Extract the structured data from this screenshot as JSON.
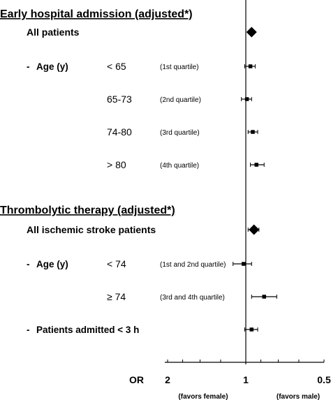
{
  "chart_data": {
    "type": "forest",
    "x_scale": "log, reversed",
    "xlim": [
      2,
      0.5
    ],
    "reference_line": 1,
    "axis": {
      "label": "OR",
      "ticks": [
        {
          "value": 2,
          "label": "2"
        },
        {
          "value": 1,
          "label": "1"
        },
        {
          "value": 0.5,
          "label": "0.5"
        }
      ],
      "left_note": "(favors female)",
      "right_note": "(favors male)"
    },
    "sections": [
      {
        "title": "Early hospital admission (adjusted*)",
        "rows": [
          {
            "group": "All patients",
            "marker": "diamond",
            "or": 0.95
          },
          {
            "group": "-  Age (y)",
            "category": "< 65",
            "note": "(1st quartile)",
            "marker": "square",
            "or": 0.96,
            "ci": [
              1.01,
              0.92
            ]
          },
          {
            "category": "65-73",
            "note": "(2nd quartile)",
            "marker": "square",
            "or": 0.99,
            "ci": [
              1.04,
              0.95
            ]
          },
          {
            "category": "74-80",
            "note": "(3rd quartile)",
            "marker": "square",
            "or": 0.94,
            "ci": [
              0.98,
              0.9
            ]
          },
          {
            "category": "> 80",
            "note": "(4th quartile)",
            "marker": "square",
            "or": 0.91,
            "ci": [
              0.96,
              0.85
            ]
          }
        ]
      },
      {
        "title": "Thrombolytic therapy (adjusted*)",
        "rows": [
          {
            "group": "All ischemic stroke patients",
            "marker": "diamond",
            "or": 0.93,
            "ci": [
              0.98,
              0.89
            ]
          },
          {
            "group": "-  Age (y)",
            "category": "< 74",
            "note": "(1st and 2nd quartile)",
            "marker": "square",
            "or": 1.02,
            "ci": [
              1.12,
              0.95
            ]
          },
          {
            "category": "≥ 74",
            "note": "(3rd and 4th quartile)",
            "marker": "square",
            "or": 0.85,
            "ci": [
              0.95,
              0.76
            ]
          },
          {
            "group": "-  Patients admitted < 3 h",
            "marker": "square",
            "or": 0.95,
            "ci": [
              1.01,
              0.9
            ]
          }
        ]
      }
    ]
  }
}
